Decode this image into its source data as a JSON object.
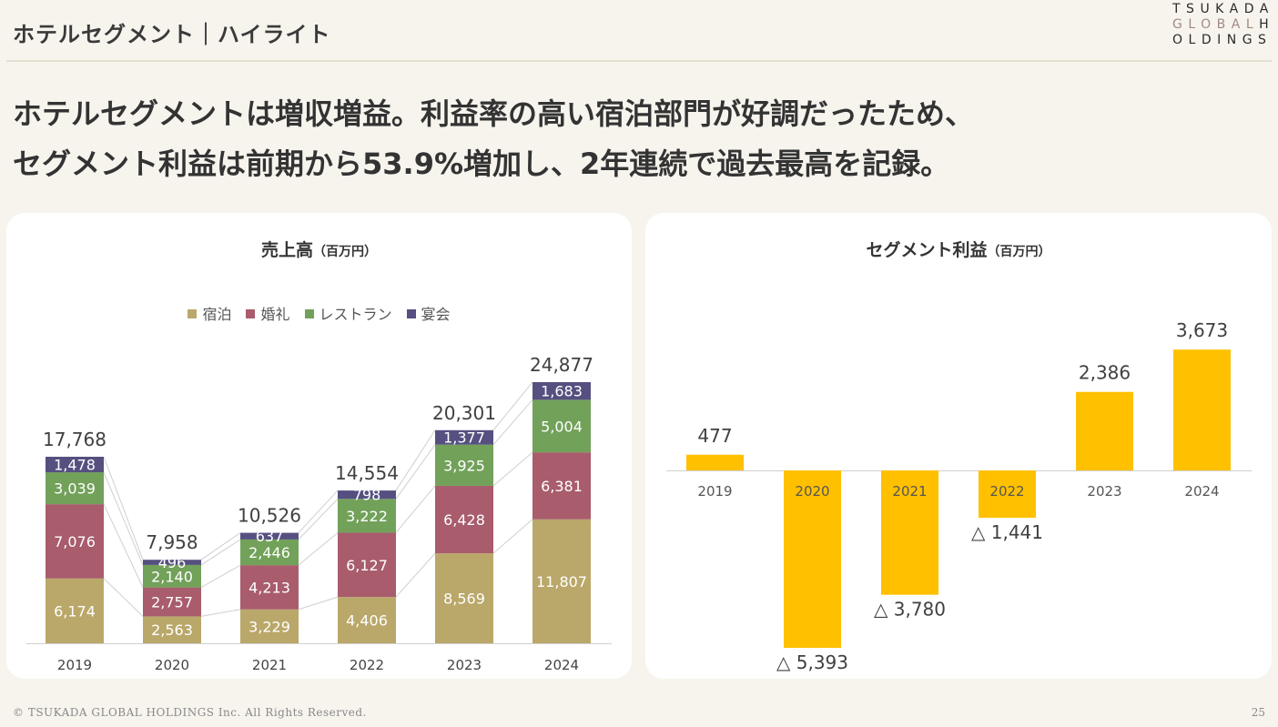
{
  "header": {
    "title": "ホテルセグメント｜ハイライト",
    "logo_lines": [
      "TSUKADA",
      "GLOBAL",
      "H",
      "OLDINGS"
    ]
  },
  "headline": {
    "line1": "ホテルセグメントは増収増益。利益率の高い宿泊部門が好調だったため、",
    "line2": "セグメント利益は前期から53.9%増加し、2年連続で過去最高を記録。"
  },
  "footer": {
    "copyright": "© TSUKADA GLOBAL HOLDINGS Inc. All Rights Reserved.",
    "page_number": "25"
  },
  "chart_data": [
    {
      "type": "bar",
      "stacked": true,
      "title": "売上高",
      "unit": "（百万円）",
      "categories": [
        "2019",
        "2020",
        "2021",
        "2022",
        "2023",
        "2024"
      ],
      "series": [
        {
          "name": "宿泊",
          "color": "#baa86a",
          "values": [
            6174,
            2563,
            3229,
            4406,
            8569,
            11807
          ]
        },
        {
          "name": "婚礼",
          "color": "#a85c6c",
          "values": [
            7076,
            2757,
            4213,
            6127,
            6428,
            6381
          ]
        },
        {
          "name": "レストラン",
          "color": "#72a15a",
          "values": [
            3039,
            2140,
            2446,
            3222,
            3925,
            5004
          ]
        },
        {
          "name": "宴会",
          "color": "#555080",
          "values": [
            1478,
            496,
            637,
            798,
            1377,
            1683
          ]
        }
      ],
      "totals": [
        17768,
        7958,
        10526,
        14554,
        20301,
        24877
      ],
      "legend_position": "top",
      "ylim": [
        0,
        26000
      ]
    },
    {
      "type": "bar",
      "title": "セグメント利益",
      "unit": "（百万円）",
      "categories": [
        "2019",
        "2020",
        "2021",
        "2022",
        "2023",
        "2024"
      ],
      "values": [
        477,
        -5393,
        -3780,
        -1441,
        2386,
        3673
      ],
      "value_labels": [
        "477",
        "△ 5,393",
        "△ 3,780",
        "△ 1,441",
        "2,386",
        "3,673"
      ],
      "color": "#ffc000",
      "ylim": [
        -5600,
        4800
      ]
    }
  ]
}
